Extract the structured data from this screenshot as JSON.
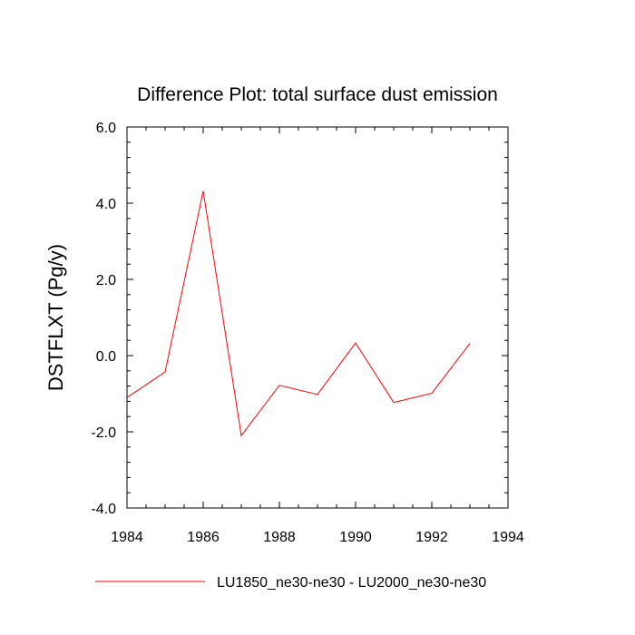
{
  "chart_data": {
    "type": "line",
    "title": "Difference Plot: total surface dust emission",
    "ylabel": "DSTFLXT  (Pg/y)",
    "xlabel": "",
    "xlim": [
      1984,
      1994
    ],
    "ylim": [
      -4.0,
      6.0
    ],
    "x_ticks": [
      1984,
      1986,
      1988,
      1990,
      1992,
      1994
    ],
    "x_tick_labels": [
      "1984",
      "1986",
      "1988",
      "1990",
      "1992",
      "1994"
    ],
    "y_ticks": [
      -4.0,
      -2.0,
      0.0,
      2.0,
      4.0,
      6.0
    ],
    "y_tick_labels": [
      "-4.0",
      "-2.0",
      "0.0",
      "2.0",
      "4.0",
      "6.0"
    ],
    "grid": false,
    "legend_position": "bottom",
    "series": [
      {
        "name": "LU1850_ne30-ne30 - LU2000_ne30-ne30",
        "color": "#ff0000",
        "x": [
          1984,
          1985,
          1986,
          1987,
          1988,
          1989,
          1990,
          1991,
          1992,
          1993
        ],
        "y": [
          -1.1,
          -0.43,
          4.32,
          -2.1,
          -0.78,
          -1.02,
          0.33,
          -1.23,
          -0.99,
          0.32
        ]
      }
    ]
  }
}
